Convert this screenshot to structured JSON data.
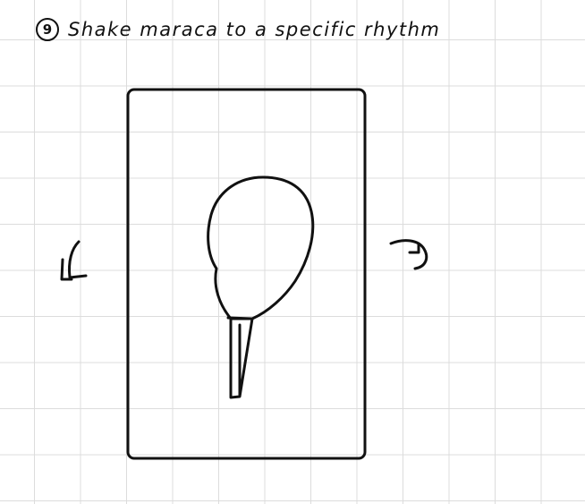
{
  "header": {
    "step_number": "9",
    "instruction": "Shake maraca to a specific rhythm"
  },
  "illustration": {
    "subject": "maraca",
    "motion_left": "counterclockwise-arrow",
    "motion_right": "clockwise-arrow",
    "ink_color": "#111111",
    "grid_color": "#dcdcdc"
  }
}
